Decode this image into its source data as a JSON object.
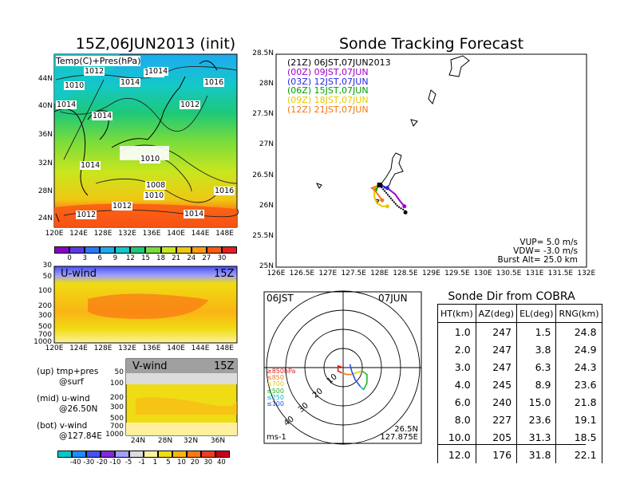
{
  "map_panel": {
    "title": "15Z,06JUN2013 (init)",
    "field_label": "Temp(C)+Pres(hPa)",
    "lat_labels": [
      "44N",
      "40N",
      "36N",
      "32N",
      "28N",
      "24N"
    ],
    "lon_labels": [
      "120E",
      "124E",
      "128E",
      "132E",
      "136E",
      "140E",
      "144E",
      "148E"
    ],
    "isobar_labels": [
      "1012",
      "1014",
      "1010",
      "1016",
      "1016",
      "1014",
      "1014",
      "1014",
      "1012",
      "1014",
      "1010",
      "1008",
      "1010",
      "1016",
      "1012",
      "1012",
      "1014"
    ],
    "colorbar_ticks": [
      "0",
      "3",
      "6",
      "9",
      "12",
      "15",
      "18",
      "21",
      "24",
      "27",
      "30"
    ],
    "colorbar_colors": [
      "#8a00c8",
      "#5a3ce6",
      "#2878ff",
      "#1eaaf0",
      "#14c8c8",
      "#1ec878",
      "#78dc3c",
      "#c8e61e",
      "#f0c814",
      "#ff9b14",
      "#fa5a14",
      "#e61e1e"
    ]
  },
  "u_panel": {
    "label": "U-wind",
    "time": "15Z",
    "y_ticks": [
      "30",
      "50",
      "100",
      "200",
      "300",
      "500",
      "700",
      "1000"
    ],
    "x_ticks": [
      "120E",
      "124E",
      "128E",
      "132E",
      "136E",
      "140E",
      "144E",
      "148E"
    ]
  },
  "v_panel": {
    "label": "V-wind",
    "time": "15Z",
    "y_ticks": [
      "50",
      "100",
      "200",
      "300",
      "500",
      "700",
      "1000"
    ],
    "x_ticks": [
      "24N",
      "28N",
      "32N",
      "36N"
    ]
  },
  "notes": {
    "line1a": "(up) tmp+pres",
    "line1b": "@surf",
    "line2a": "(mid) u-wind",
    "line2b": "@26.50N",
    "line3a": "(bot) v-wind",
    "line3b": "@127.84E"
  },
  "wind_colorbar": {
    "ticks": [
      "-40",
      "-30",
      "-20",
      "-10",
      "-5",
      "-1",
      "1",
      "5",
      "10",
      "20",
      "30",
      "40"
    ],
    "colors": [
      "#00c8c8",
      "#1e8cff",
      "#4650f0",
      "#8228dc",
      "#a0a0ff",
      "#dcdcdc",
      "#fff0a0",
      "#f0dc14",
      "#fab414",
      "#fa7814",
      "#f03c1e",
      "#c8001e"
    ]
  },
  "track_panel": {
    "title": "Sonde Tracking Forecast",
    "lat_labels": [
      "28.5N",
      "28N",
      "27.5N",
      "27N",
      "26.5N",
      "26N",
      "25.5N",
      "25N"
    ],
    "lon_labels": [
      "126E",
      "126.5E",
      "127E",
      "127.5E",
      "128E",
      "128.5E",
      "129E",
      "129.5E",
      "130E",
      "130.5E",
      "131E",
      "131.5E",
      "132E"
    ],
    "legend": [
      {
        "text": "(21Z) 06JST,07JUN2013",
        "color": "#000000"
      },
      {
        "text": "(00Z) 09JST,07JUN",
        "color": "#a000c8"
      },
      {
        "text": "(03Z) 12JST,07JUN",
        "color": "#2828e6"
      },
      {
        "text": "(06Z) 15JST,07JUN",
        "color": "#00a000"
      },
      {
        "text": "(09Z) 18JST,07JUN",
        "color": "#e6c800"
      },
      {
        "text": "(12Z) 21JST,07JUN",
        "color": "#f07814"
      }
    ],
    "params": [
      "VUP=  5.0 m/s",
      "VDW= -3.0 m/s",
      "Burst Alt= 25.0 km"
    ]
  },
  "polar_panel": {
    "time": "06JST",
    "date": "07JUN",
    "ring_labels": [
      "10",
      "20",
      "30",
      "40"
    ],
    "pressure_legend": [
      {
        "text": "≥850hPa",
        "color": "#e61e1e"
      },
      {
        "text": "≤850",
        "color": "#f07814"
      },
      {
        "text": "≤700",
        "color": "#e6c800"
      },
      {
        "text": "≤500",
        "color": "#28b428"
      },
      {
        "text": "≤250",
        "color": "#14b4c8"
      },
      {
        "text": "≤100",
        "color": "#2850e6"
      }
    ],
    "unit": "ms-1",
    "loc_lat": "26.5N",
    "loc_lon": "127.875E"
  },
  "table": {
    "title": "Sonde Dir from COBRA",
    "headers": [
      "HT(km)",
      "AZ(deg)",
      "EL(deg)",
      "RNG(km)"
    ],
    "rows": [
      [
        "1.0",
        "247",
        "1.5",
        "24.8"
      ],
      [
        "2.0",
        "247",
        "3.8",
        "24.9"
      ],
      [
        "3.0",
        "247",
        "6.3",
        "24.3"
      ],
      [
        "4.0",
        "245",
        "8.9",
        "23.6"
      ],
      [
        "6.0",
        "240",
        "15.0",
        "21.8"
      ],
      [
        "8.0",
        "227",
        "23.6",
        "19.1"
      ],
      [
        "10.0",
        "205",
        "31.3",
        "18.5"
      ],
      [
        "12.0",
        "176",
        "31.8",
        "22.1"
      ]
    ]
  },
  "chart_data": [
    {
      "type": "line",
      "title": "Sonde Tracking Forecast",
      "xlabel": "",
      "ylabel": "",
      "xlim": [
        126,
        132
      ],
      "ylim": [
        25,
        28.5
      ],
      "x_unit": "deg E",
      "y_unit": "deg N",
      "series": [
        {
          "name": "(21Z) 06JST,07JUN2013",
          "color": "#000000",
          "x": [
            128.0,
            128.05,
            128.15,
            128.25,
            128.35,
            128.45,
            128.5,
            128.5
          ],
          "y": [
            26.35,
            26.3,
            26.2,
            26.1,
            26.0,
            25.95,
            25.92,
            25.9
          ]
        },
        {
          "name": "(00Z) 09JST,07JUN",
          "color": "#a000c8",
          "x": [
            128.0,
            128.15,
            128.3,
            128.4,
            128.48
          ],
          "y": [
            26.35,
            26.3,
            26.2,
            26.08,
            26.0
          ]
        },
        {
          "name": "(03Z) 12JST,07JUN",
          "color": "#2828e6",
          "x": [
            128.0,
            128.1,
            128.15
          ],
          "y": [
            26.35,
            26.32,
            26.3
          ]
        },
        {
          "name": "(06Z) 15JST,07JUN",
          "color": "#00a000",
          "x": [
            128.0,
            127.95,
            127.92
          ],
          "y": [
            26.35,
            26.3,
            26.27
          ]
        },
        {
          "name": "(09Z) 18JST,07JUN",
          "color": "#e6c800",
          "x": [
            128.0,
            127.9,
            127.9,
            127.95,
            128.05,
            128.15
          ],
          "y": [
            26.35,
            26.3,
            26.15,
            26.05,
            26.0,
            26.0
          ]
        },
        {
          "name": "(12Z) 21JST,07JUN",
          "color": "#f07814",
          "x": [
            128.0,
            127.85,
            127.92,
            128.05
          ],
          "y": [
            26.35,
            26.3,
            26.25,
            26.1
          ]
        }
      ]
    },
    {
      "type": "table",
      "title": "Sonde Dir from COBRA",
      "columns": [
        "HT(km)",
        "AZ(deg)",
        "EL(deg)",
        "RNG(km)"
      ],
      "rows": [
        [
          1.0,
          247,
          1.5,
          24.8
        ],
        [
          2.0,
          247,
          3.8,
          24.9
        ],
        [
          3.0,
          247,
          6.3,
          24.3
        ],
        [
          4.0,
          245,
          8.9,
          23.6
        ],
        [
          6.0,
          240,
          15.0,
          21.8
        ],
        [
          8.0,
          227,
          23.6,
          19.1
        ],
        [
          10.0,
          205,
          31.3,
          18.5
        ],
        [
          12.0,
          176,
          31.8,
          22.1
        ]
      ]
    },
    {
      "type": "scatter",
      "title": "",
      "subtype": "wind hodograph (polar, ms-1)",
      "rlim": [
        0,
        45
      ],
      "series": [
        {
          "name": "≥850hPa",
          "color": "#e61e1e",
          "u": [
            0,
            -3,
            -3,
            -1
          ],
          "v": [
            0,
            1,
            -2,
            -3
          ]
        },
        {
          "name": "≤850",
          "color": "#f07814",
          "u": [
            -1,
            2,
            5
          ],
          "v": [
            -3,
            -4,
            -4
          ]
        },
        {
          "name": "≤700",
          "color": "#e6c800",
          "u": [
            5,
            8,
            11
          ],
          "v": [
            -4,
            -3,
            -2
          ]
        },
        {
          "name": "≤500",
          "color": "#28b428",
          "u": [
            11,
            14,
            14,
            12
          ],
          "v": [
            -2,
            -4,
            -9,
            -13
          ]
        },
        {
          "name": "≤250",
          "color": "#14b4c8",
          "u": [
            12,
            10
          ],
          "v": [
            -13,
            -11
          ]
        },
        {
          "name": "≤100",
          "color": "#2850e6",
          "u": [
            10,
            7,
            5,
            4
          ],
          "v": [
            -11,
            -7,
            -2,
            2
          ]
        }
      ]
    }
  ]
}
